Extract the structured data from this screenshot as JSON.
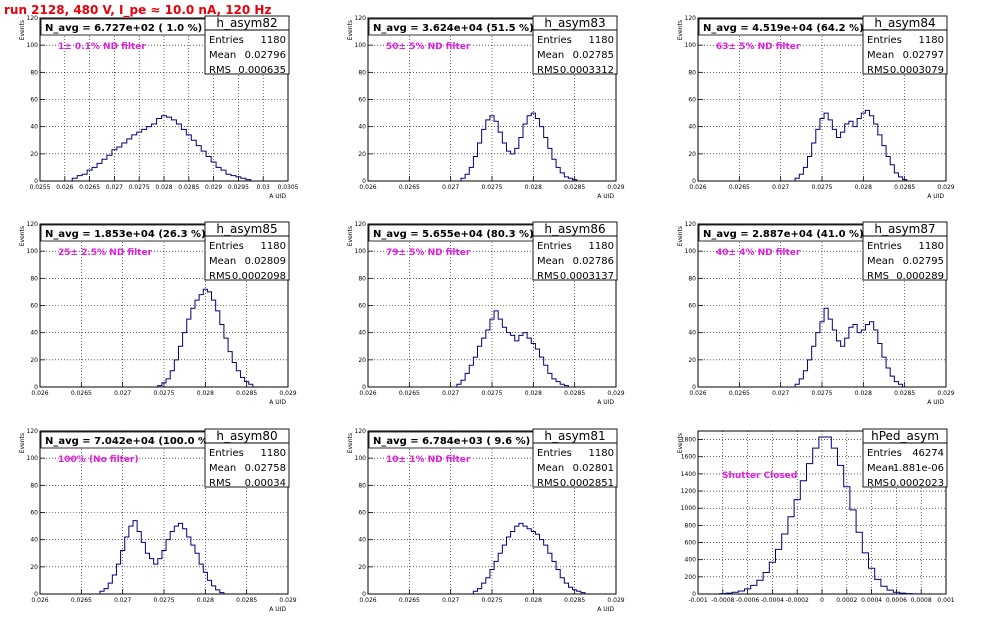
{
  "title": "run 2128,   480 V, I_pe ≈ 10.0 nA, 120 Hz",
  "colors": {
    "run_title": "#e8000b",
    "histogram_line": "#00007f",
    "annotation": "#e11de1",
    "grid": "#000000"
  },
  "chart_data": [
    {
      "id": "h_asym82",
      "type": "histogram",
      "stats_title": "h_asym82",
      "stats": [
        {
          "label": "Entries",
          "value": "1180"
        },
        {
          "label": "Mean",
          "value": "0.02796"
        },
        {
          "label": "RMS",
          "value": "0.000635"
        }
      ],
      "n_avg": "N_avg = 6.727e+02 ( 1.0 %)",
      "filter_label": "1± 0.1% ND filter",
      "xlabel": "A UID",
      "ylabel": "Events",
      "xlim": [
        0.0255,
        0.0305
      ],
      "ylim": [
        0,
        120
      ],
      "xticks": [
        "0.0255",
        "0.026",
        "0.0265",
        "0.027",
        "0.0275",
        "0.028",
        "0.0285",
        "0.029",
        "0.0295",
        "0.03",
        "0.0305"
      ],
      "yticks": [
        "0",
        "20",
        "40",
        "60",
        "80",
        "100",
        "120"
      ],
      "grid": true,
      "x": [
        0.0262,
        0.0263,
        0.0264,
        0.0265,
        0.0266,
        0.0267,
        0.0268,
        0.0269,
        0.027,
        0.0271,
        0.0272,
        0.0273,
        0.0274,
        0.0275,
        0.0276,
        0.0277,
        0.0278,
        0.0279,
        0.028,
        0.0281,
        0.0282,
        0.0283,
        0.0284,
        0.0285,
        0.0286,
        0.0287,
        0.0288,
        0.0289,
        0.029,
        0.0291,
        0.0292,
        0.0293,
        0.0294,
        0.0295,
        0.0296,
        0.0297
      ],
      "values": [
        2,
        4,
        5,
        8,
        10,
        13,
        16,
        19,
        23,
        25,
        28,
        31,
        34,
        36,
        38,
        40,
        42,
        46,
        48,
        47,
        45,
        42,
        38,
        34,
        30,
        26,
        22,
        18,
        14,
        10,
        8,
        5,
        4,
        3,
        2,
        1
      ]
    },
    {
      "id": "h_asym83",
      "type": "histogram",
      "stats_title": "h_asym83",
      "stats": [
        {
          "label": "Entries",
          "value": "1180"
        },
        {
          "label": "Mean",
          "value": "0.02785"
        },
        {
          "label": "RMS",
          "value": "0.0003312"
        }
      ],
      "n_avg": "N_avg = 3.624e+04 (51.5 %)",
      "filter_label": "50± 5% ND filter",
      "xlabel": "A UID",
      "ylabel": "Events",
      "xlim": [
        0.026,
        0.029
      ],
      "ylim": [
        0,
        120
      ],
      "xticks": [
        "0.026",
        "0.0265",
        "0.027",
        "0.0275",
        "0.028",
        "0.0285",
        "0.029"
      ],
      "yticks": [
        "0",
        "20",
        "40",
        "60",
        "80",
        "100",
        "120"
      ],
      "grid": true,
      "x": [
        0.02715,
        0.0272,
        0.02725,
        0.0273,
        0.02735,
        0.0274,
        0.02745,
        0.0275,
        0.02755,
        0.0276,
        0.02765,
        0.0277,
        0.02775,
        0.0278,
        0.02785,
        0.0279,
        0.02795,
        0.028,
        0.02805,
        0.0281,
        0.02815,
        0.0282,
        0.02825,
        0.0283,
        0.02835,
        0.0284,
        0.02845,
        0.0285
      ],
      "values": [
        2,
        5,
        10,
        18,
        28,
        38,
        45,
        48,
        44,
        36,
        28,
        22,
        20,
        24,
        32,
        42,
        48,
        50,
        46,
        40,
        32,
        24,
        16,
        10,
        6,
        3,
        2,
        1
      ]
    },
    {
      "id": "h_asym84",
      "type": "histogram",
      "stats_title": "h_asym84",
      "stats": [
        {
          "label": "Entries",
          "value": "1180"
        },
        {
          "label": "Mean",
          "value": "0.02797"
        },
        {
          "label": "RMS",
          "value": "0.0003079"
        }
      ],
      "n_avg": "N_avg = 4.519e+04 (64.2 %)",
      "filter_label": "63± 5% ND filter",
      "xlabel": "A UID",
      "ylabel": "Events",
      "xlim": [
        0.026,
        0.029
      ],
      "ylim": [
        0,
        120
      ],
      "xticks": [
        "0.026",
        "0.0265",
        "0.027",
        "0.0275",
        "0.028",
        "0.0285",
        "0.029"
      ],
      "yticks": [
        "0",
        "20",
        "40",
        "60",
        "80",
        "100",
        "120"
      ],
      "grid": true,
      "x": [
        0.0272,
        0.02725,
        0.0273,
        0.02735,
        0.0274,
        0.02745,
        0.0275,
        0.02755,
        0.0276,
        0.02765,
        0.0277,
        0.02775,
        0.0278,
        0.02785,
        0.0279,
        0.02795,
        0.028,
        0.02805,
        0.0281,
        0.02815,
        0.0282,
        0.02825,
        0.0283,
        0.02835,
        0.0284,
        0.02845,
        0.0285
      ],
      "values": [
        2,
        5,
        10,
        18,
        28,
        38,
        46,
        50,
        45,
        38,
        32,
        36,
        42,
        44,
        40,
        46,
        50,
        52,
        48,
        42,
        34,
        26,
        18,
        12,
        6,
        3,
        1
      ]
    },
    {
      "id": "h_asym85",
      "type": "histogram",
      "stats_title": "h_asym85",
      "stats": [
        {
          "label": "Entries",
          "value": "1180"
        },
        {
          "label": "Mean",
          "value": "0.02809"
        },
        {
          "label": "RMS",
          "value": "0.0002098"
        }
      ],
      "n_avg": "N_avg = 1.853e+04 (26.3 %)",
      "filter_label": "25± 2.5% ND filter",
      "xlabel": "A UID",
      "ylabel": "Events",
      "xlim": [
        0.026,
        0.029
      ],
      "ylim": [
        0,
        120
      ],
      "xticks": [
        "0.026",
        "0.0265",
        "0.027",
        "0.0275",
        "0.028",
        "0.0285",
        "0.029"
      ],
      "yticks": [
        "0",
        "20",
        "40",
        "60",
        "80",
        "100",
        "120"
      ],
      "grid": true,
      "x": [
        0.02745,
        0.0275,
        0.02755,
        0.0276,
        0.02765,
        0.0277,
        0.02775,
        0.0278,
        0.02785,
        0.0279,
        0.02795,
        0.028,
        0.02805,
        0.0281,
        0.02815,
        0.0282,
        0.02825,
        0.0283,
        0.02835,
        0.0284,
        0.02845,
        0.0285,
        0.02855
      ],
      "values": [
        1,
        3,
        6,
        12,
        20,
        30,
        40,
        50,
        58,
        64,
        68,
        72,
        70,
        64,
        56,
        46,
        36,
        26,
        18,
        12,
        7,
        4,
        2
      ]
    },
    {
      "id": "h_asym86",
      "type": "histogram",
      "stats_title": "h_asym86",
      "stats": [
        {
          "label": "Entries",
          "value": "1180"
        },
        {
          "label": "Mean",
          "value": "0.02786"
        },
        {
          "label": "RMS",
          "value": "0.0003137"
        }
      ],
      "n_avg": "N_avg = 5.655e+04 (80.3 %)",
      "filter_label": "79± 5% ND filter",
      "xlabel": "A UID",
      "ylabel": "Events",
      "xlim": [
        0.026,
        0.029
      ],
      "ylim": [
        0,
        120
      ],
      "xticks": [
        "0.026",
        "0.0265",
        "0.027",
        "0.0275",
        "0.028",
        "0.0285",
        "0.029"
      ],
      "yticks": [
        "0",
        "20",
        "40",
        "60",
        "80",
        "100",
        "120"
      ],
      "grid": true,
      "x": [
        0.0271,
        0.02715,
        0.0272,
        0.02725,
        0.0273,
        0.02735,
        0.0274,
        0.02745,
        0.0275,
        0.02755,
        0.0276,
        0.02765,
        0.0277,
        0.02775,
        0.0278,
        0.02785,
        0.0279,
        0.02795,
        0.028,
        0.02805,
        0.0281,
        0.02815,
        0.0282,
        0.02825,
        0.0283,
        0.02835,
        0.0284
      ],
      "values": [
        2,
        5,
        10,
        16,
        22,
        30,
        36,
        42,
        50,
        56,
        50,
        44,
        40,
        38,
        34,
        38,
        40,
        36,
        32,
        28,
        22,
        16,
        10,
        6,
        4,
        2,
        1
      ]
    },
    {
      "id": "h_asym87",
      "type": "histogram",
      "stats_title": "h_asym87",
      "stats": [
        {
          "label": "Entries",
          "value": "1180"
        },
        {
          "label": "Mean",
          "value": "0.02795"
        },
        {
          "label": "RMS",
          "value": "0.000289"
        }
      ],
      "n_avg": "N_avg = 2.887e+04 (41.0 %)",
      "filter_label": "40± 4% ND filter",
      "xlabel": "A UID",
      "ylabel": "Events",
      "xlim": [
        0.026,
        0.029
      ],
      "ylim": [
        0,
        120
      ],
      "xticks": [
        "0.026",
        "0.0265",
        "0.027",
        "0.0275",
        "0.028",
        "0.0285",
        "0.029"
      ],
      "yticks": [
        "0",
        "20",
        "40",
        "60",
        "80",
        "100",
        "120"
      ],
      "grid": true,
      "x": [
        0.0272,
        0.02725,
        0.0273,
        0.02735,
        0.0274,
        0.02745,
        0.0275,
        0.02755,
        0.0276,
        0.02765,
        0.0277,
        0.02775,
        0.0278,
        0.02785,
        0.0279,
        0.02795,
        0.028,
        0.02805,
        0.0281,
        0.02815,
        0.0282,
        0.02825,
        0.0283,
        0.02835,
        0.0284,
        0.02845
      ],
      "values": [
        2,
        6,
        12,
        20,
        30,
        40,
        48,
        58,
        50,
        42,
        34,
        30,
        36,
        44,
        46,
        40,
        42,
        46,
        48,
        42,
        32,
        22,
        14,
        8,
        4,
        2
      ]
    },
    {
      "id": "h_asym80",
      "type": "histogram",
      "stats_title": "h_asym80",
      "stats": [
        {
          "label": "Entries",
          "value": "1180"
        },
        {
          "label": "Mean",
          "value": "0.02758"
        },
        {
          "label": "RMS",
          "value": "0.00034"
        }
      ],
      "n_avg": "N_avg = 7.042e+04 (100.0 %)",
      "filter_label": "100% (No filter)",
      "xlabel": "A UID",
      "ylabel": "Events",
      "xlim": [
        0.026,
        0.029
      ],
      "ylim": [
        0,
        120
      ],
      "xticks": [
        "0.026",
        "0.0265",
        "0.027",
        "0.0275",
        "0.028",
        "0.0285",
        "0.029"
      ],
      "yticks": [
        "0",
        "20",
        "40",
        "60",
        "80",
        "100",
        "120"
      ],
      "grid": true,
      "x": [
        0.02675,
        0.0268,
        0.02685,
        0.0269,
        0.02695,
        0.027,
        0.02705,
        0.0271,
        0.02715,
        0.0272,
        0.02725,
        0.0273,
        0.02735,
        0.0274,
        0.02745,
        0.0275,
        0.02755,
        0.0276,
        0.02765,
        0.0277,
        0.02775,
        0.0278,
        0.02785,
        0.0279,
        0.02795,
        0.028,
        0.02805,
        0.0281,
        0.02815,
        0.0282
      ],
      "values": [
        2,
        4,
        8,
        14,
        22,
        32,
        42,
        50,
        54,
        46,
        38,
        30,
        26,
        22,
        26,
        32,
        40,
        46,
        50,
        52,
        48,
        42,
        36,
        30,
        22,
        16,
        10,
        6,
        3,
        1
      ]
    },
    {
      "id": "h_asym81",
      "type": "histogram",
      "stats_title": "h_asym81",
      "stats": [
        {
          "label": "Entries",
          "value": "1180"
        },
        {
          "label": "Mean",
          "value": "0.02801"
        },
        {
          "label": "RMS",
          "value": "0.0002851"
        }
      ],
      "n_avg": "N_avg = 6.784e+03 ( 9.6 %)",
      "filter_label": "10± 1% ND filter",
      "xlabel": "A UID",
      "ylabel": "Events",
      "xlim": [
        0.026,
        0.029
      ],
      "ylim": [
        0,
        120
      ],
      "xticks": [
        "0.026",
        "0.0265",
        "0.027",
        "0.0275",
        "0.028",
        "0.0285",
        "0.029"
      ],
      "yticks": [
        "0",
        "20",
        "40",
        "60",
        "80",
        "100",
        "120"
      ],
      "grid": true,
      "x": [
        0.0273,
        0.02735,
        0.0274,
        0.02745,
        0.0275,
        0.02755,
        0.0276,
        0.02765,
        0.0277,
        0.02775,
        0.0278,
        0.02785,
        0.0279,
        0.02795,
        0.028,
        0.02805,
        0.0281,
        0.02815,
        0.0282,
        0.02825,
        0.0283,
        0.02835,
        0.0284,
        0.02845,
        0.0285,
        0.02855,
        0.0286
      ],
      "values": [
        2,
        4,
        8,
        12,
        18,
        24,
        30,
        36,
        42,
        46,
        50,
        52,
        50,
        48,
        46,
        44,
        40,
        36,
        30,
        24,
        18,
        12,
        8,
        5,
        3,
        2,
        1
      ]
    },
    {
      "id": "hPed_asym",
      "type": "histogram",
      "stats_title": "hPed_asym",
      "stats": [
        {
          "label": "Entries",
          "value": "46274"
        },
        {
          "label": "Mean",
          "value": "-1.881e-06"
        },
        {
          "label": "RMS",
          "value": "0.0002023"
        }
      ],
      "n_avg": "",
      "filter_label": "Shutter Closed",
      "xlabel": "",
      "ylabel": "Events",
      "xlim": [
        -0.001,
        0.001
      ],
      "ylim": [
        0,
        1900
      ],
      "xticks": [
        "-0.001",
        "-0.0008",
        "-0.0006",
        "-0.0004",
        "-0.0002",
        "0",
        "0.0002",
        "0.0004",
        "0.0006",
        "0.0008",
        "0.001"
      ],
      "yticks": [
        "0",
        "200",
        "400",
        "600",
        "800",
        "1000",
        "1200",
        "1400",
        "1600",
        "1800"
      ],
      "grid": true,
      "x": [
        -0.0008,
        -0.00075,
        -0.0007,
        -0.00065,
        -0.0006,
        -0.00055,
        -0.0005,
        -0.00045,
        -0.0004,
        -0.00035,
        -0.0003,
        -0.00025,
        -0.0002,
        -0.00015,
        -0.0001,
        -5e-05,
        0,
        5e-05,
        0.0001,
        0.00015,
        0.0002,
        0.00025,
        0.0003,
        0.00035,
        0.0004,
        0.00045,
        0.0005,
        0.00055,
        0.0006,
        0.00065,
        0.0007,
        0.00075
      ],
      "values": [
        5,
        10,
        20,
        35,
        60,
        100,
        160,
        250,
        370,
        520,
        700,
        900,
        1100,
        1320,
        1520,
        1700,
        1830,
        1830,
        1700,
        1500,
        1250,
        980,
        720,
        480,
        300,
        170,
        90,
        45,
        20,
        10,
        5,
        2
      ]
    }
  ]
}
